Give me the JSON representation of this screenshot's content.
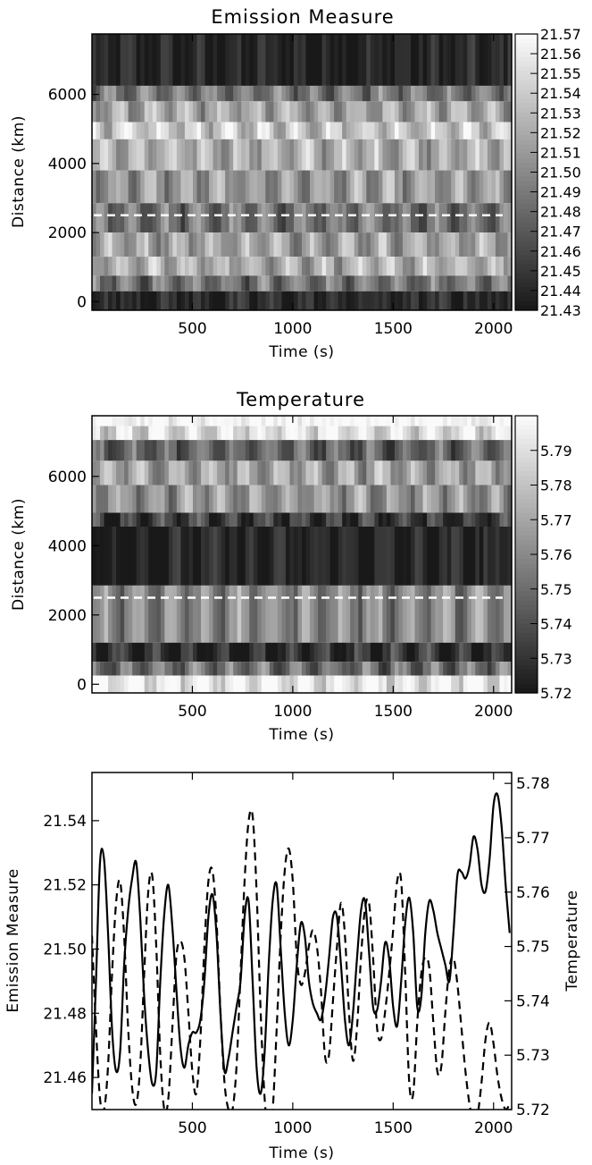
{
  "chart_data": [
    {
      "type": "heatmap",
      "title": "Emission Measure",
      "xlabel": "Time (s)",
      "ylabel": "Distance (km)",
      "xlim": [
        0,
        2090
      ],
      "ylim": [
        -250,
        7750
      ],
      "xticks": [
        500,
        1000,
        1500,
        2000
      ],
      "yticks": [
        0,
        2000,
        4000,
        6000
      ],
      "colormap": "grayscale (black = low, white = high)",
      "colorbar": {
        "range": [
          21.43,
          21.57
        ],
        "ticks": [
          "21.57",
          "21.56",
          "21.55",
          "21.54",
          "21.53",
          "21.52",
          "21.51",
          "21.50",
          "21.49",
          "21.48",
          "21.47",
          "21.46",
          "21.45",
          "21.44",
          "21.43"
        ]
      },
      "reference_line": {
        "distance": 2500,
        "style": "white dashed"
      },
      "distance_bands": [
        {
          "from": 6250,
          "to": 7750,
          "level": 0.05
        },
        {
          "from": 5800,
          "to": 6250,
          "level": 0.42
        },
        {
          "from": 5200,
          "to": 5800,
          "level": 0.62
        },
        {
          "from": 4700,
          "to": 5200,
          "level": 0.78
        },
        {
          "from": 3800,
          "to": 4700,
          "level": 0.66
        },
        {
          "from": 2850,
          "to": 3800,
          "level": 0.56
        },
        {
          "from": 2000,
          "to": 2850,
          "level": 0.4
        },
        {
          "from": 1300,
          "to": 2000,
          "level": 0.62
        },
        {
          "from": 750,
          "to": 1300,
          "level": 0.66
        },
        {
          "from": 300,
          "to": 750,
          "level": 0.4
        },
        {
          "from": -250,
          "to": 300,
          "level": 0.08
        }
      ]
    },
    {
      "type": "heatmap",
      "title": "Temperature",
      "xlabel": "Time (s)",
      "ylabel": "Distance (km)",
      "xlim": [
        0,
        2090
      ],
      "ylim": [
        -250,
        7750
      ],
      "xticks": [
        500,
        1000,
        1500,
        2000
      ],
      "yticks": [
        0,
        2000,
        4000,
        6000
      ],
      "colormap": "grayscale (black = low, white = high)",
      "colorbar": {
        "range": [
          5.72,
          5.8
        ],
        "ticks": [
          "5.79",
          "5.78",
          "5.77",
          "5.76",
          "5.75",
          "5.74",
          "5.73",
          "5.72"
        ]
      },
      "reference_line": {
        "distance": 2500,
        "style": "white dashed"
      },
      "distance_bands": [
        {
          "from": 7450,
          "to": 7750,
          "level": 1.0
        },
        {
          "from": 7050,
          "to": 7450,
          "level": 0.88
        },
        {
          "from": 6450,
          "to": 7050,
          "level": 0.32
        },
        {
          "from": 5750,
          "to": 6450,
          "level": 0.62
        },
        {
          "from": 4950,
          "to": 5750,
          "level": 0.55
        },
        {
          "from": 4550,
          "to": 4950,
          "level": 0.15
        },
        {
          "from": 2850,
          "to": 4550,
          "level": 0.05
        },
        {
          "from": 1200,
          "to": 2850,
          "level": 0.5
        },
        {
          "from": 650,
          "to": 1200,
          "level": 0.1
        },
        {
          "from": 250,
          "to": 650,
          "level": 0.38
        },
        {
          "from": -250,
          "to": 250,
          "level": 0.93
        }
      ]
    },
    {
      "type": "line",
      "xlabel": "Time (s)",
      "ylabel": "Emission Measure",
      "y2label": "Temperature",
      "xlim": [
        0,
        2090
      ],
      "ylim": [
        21.45,
        21.555
      ],
      "y2lim": [
        5.72,
        5.782
      ],
      "xticks": [
        500,
        1000,
        1500,
        2000
      ],
      "yticks": [
        21.46,
        21.48,
        21.5,
        21.52,
        21.54
      ],
      "y2ticks": [
        5.72,
        5.73,
        5.74,
        5.75,
        5.76,
        5.77,
        5.78
      ],
      "series": [
        {
          "style": "solid",
          "axis": "left",
          "x": [
            0,
            20,
            40,
            60,
            80,
            100,
            120,
            140,
            160,
            180,
            200,
            220,
            240,
            260,
            280,
            300,
            320,
            340,
            360,
            380,
            400,
            420,
            440,
            460,
            480,
            500,
            520,
            540,
            560,
            580,
            600,
            620,
            640,
            660,
            680,
            700,
            720,
            740,
            760,
            780,
            800,
            820,
            840,
            860,
            880,
            900,
            920,
            940,
            960,
            980,
            1000,
            1020,
            1040,
            1060,
            1080,
            1100,
            1120,
            1140,
            1160,
            1180,
            1200,
            1220,
            1240,
            1260,
            1280,
            1300,
            1320,
            1340,
            1360,
            1380,
            1400,
            1420,
            1440,
            1460,
            1480,
            1500,
            1520,
            1540,
            1560,
            1580,
            1600,
            1620,
            1640,
            1660,
            1680,
            1700,
            1720,
            1740,
            1760,
            1780,
            1800,
            1820,
            1840,
            1860,
            1880,
            1900,
            1920,
            1940,
            1960,
            1980,
            2000,
            2020,
            2040,
            2060,
            2080
          ],
          "values": [
            21.455,
            21.49,
            21.527,
            21.528,
            21.505,
            21.475,
            21.462,
            21.468,
            21.495,
            21.512,
            21.522,
            21.527,
            21.51,
            21.485,
            21.468,
            21.458,
            21.462,
            21.49,
            21.511,
            21.52,
            21.507,
            21.488,
            21.47,
            21.463,
            21.47,
            21.474,
            21.474,
            21.478,
            21.49,
            21.51,
            21.517,
            21.505,
            21.48,
            21.462,
            21.466,
            21.474,
            21.482,
            21.49,
            21.51,
            21.515,
            21.49,
            21.463,
            21.455,
            21.468,
            21.495,
            21.515,
            21.52,
            21.5,
            21.48,
            21.47,
            21.478,
            21.495,
            21.508,
            21.504,
            21.49,
            21.483,
            21.48,
            21.478,
            21.485,
            21.497,
            21.51,
            21.51,
            21.495,
            21.478,
            21.47,
            21.48,
            21.497,
            21.512,
            21.515,
            21.499,
            21.482,
            21.481,
            21.49,
            21.502,
            21.497,
            21.482,
            21.476,
            21.49,
            21.508,
            21.516,
            21.505,
            21.482,
            21.485,
            21.505,
            21.515,
            21.512,
            21.505,
            21.5,
            21.495,
            21.49,
            21.505,
            21.523,
            21.524,
            21.522,
            21.526,
            21.535,
            21.531,
            21.52,
            21.518,
            21.528,
            21.545,
            21.548,
            21.538,
            21.52,
            21.505
          ]
        },
        {
          "style": "dashed",
          "axis": "right",
          "x": [
            0,
            20,
            40,
            60,
            80,
            100,
            120,
            140,
            160,
            180,
            200,
            220,
            240,
            260,
            280,
            300,
            320,
            340,
            360,
            380,
            400,
            420,
            440,
            460,
            480,
            500,
            520,
            540,
            560,
            580,
            600,
            620,
            640,
            660,
            680,
            700,
            720,
            740,
            760,
            780,
            800,
            820,
            840,
            860,
            880,
            900,
            920,
            940,
            960,
            980,
            1000,
            1020,
            1040,
            1060,
            1080,
            1100,
            1120,
            1140,
            1160,
            1180,
            1200,
            1220,
            1240,
            1260,
            1280,
            1300,
            1320,
            1340,
            1360,
            1380,
            1400,
            1420,
            1440,
            1460,
            1480,
            1500,
            1520,
            1540,
            1560,
            1580,
            1600,
            1620,
            1640,
            1660,
            1680,
            1700,
            1720,
            1740,
            1760,
            1780,
            1800,
            1820,
            1840,
            1860,
            1880,
            1900,
            1920,
            1940,
            1960,
            1980,
            2000,
            2020,
            2040,
            2060,
            2080
          ],
          "values": [
            5.752,
            5.735,
            5.722,
            5.72,
            5.728,
            5.745,
            5.758,
            5.762,
            5.752,
            5.735,
            5.724,
            5.721,
            5.728,
            5.745,
            5.76,
            5.763,
            5.75,
            5.73,
            5.72,
            5.722,
            5.735,
            5.748,
            5.751,
            5.748,
            5.738,
            5.727,
            5.723,
            5.733,
            5.75,
            5.762,
            5.764,
            5.755,
            5.738,
            5.725,
            5.72,
            5.72,
            5.728,
            5.745,
            5.762,
            5.773,
            5.774,
            5.76,
            5.738,
            5.722,
            5.716,
            5.72,
            5.735,
            5.752,
            5.764,
            5.768,
            5.762,
            5.748,
            5.743,
            5.745,
            5.75,
            5.753,
            5.75,
            5.742,
            5.73,
            5.73,
            5.74,
            5.75,
            5.758,
            5.752,
            5.738,
            5.729,
            5.735,
            5.748,
            5.757,
            5.758,
            5.748,
            5.735,
            5.733,
            5.738,
            5.745,
            5.753,
            5.762,
            5.762,
            5.745,
            5.725,
            5.723,
            5.736,
            5.745,
            5.748,
            5.746,
            5.736,
            5.727,
            5.728,
            5.738,
            5.746,
            5.748,
            5.743,
            5.735,
            5.727,
            5.721,
            5.718,
            5.719,
            5.725,
            5.733,
            5.736,
            5.732,
            5.726,
            5.722,
            5.72,
            5.721
          ]
        }
      ]
    }
  ]
}
